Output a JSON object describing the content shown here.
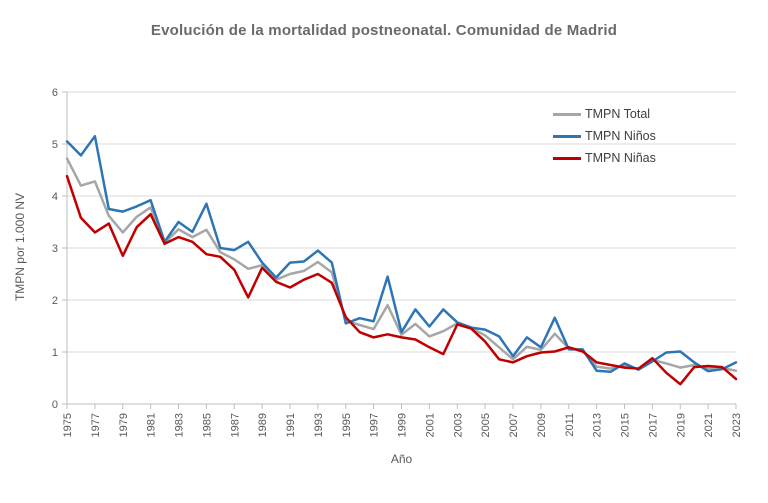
{
  "title": "Evolución de la mortalidad postneonatal. Comunidad de Madrid",
  "axes": {
    "x_label": "Año",
    "y_label": "TMPN por 1.000 NV"
  },
  "chart_data": {
    "type": "line",
    "title": "Evolución de la mortalidad postneonatal. Comunidad de Madrid",
    "xlabel": "Año",
    "ylabel": "TMPN por 1.000 NV",
    "ylim": [
      0,
      6
    ],
    "y_ticks": [
      0,
      1,
      2,
      3,
      4,
      5,
      6
    ],
    "x_tick_label_step": 2,
    "grid": true,
    "legend_position": "top-right-inside",
    "x": [
      1975,
      1976,
      1977,
      1978,
      1979,
      1980,
      1981,
      1982,
      1983,
      1984,
      1985,
      1986,
      1987,
      1988,
      1989,
      1990,
      1991,
      1992,
      1993,
      1994,
      1995,
      1996,
      1997,
      1998,
      1999,
      2000,
      2001,
      2002,
      2003,
      2004,
      2005,
      2006,
      2007,
      2008,
      2009,
      2010,
      2011,
      2012,
      2013,
      2014,
      2015,
      2016,
      2017,
      2018,
      2019,
      2020,
      2021,
      2022,
      2023
    ],
    "series": [
      {
        "name": "TMPN Total",
        "color": "#A6A6A6",
        "values": [
          4.72,
          4.2,
          4.28,
          3.62,
          3.3,
          3.6,
          3.78,
          3.1,
          3.36,
          3.21,
          3.35,
          2.92,
          2.78,
          2.6,
          2.67,
          2.39,
          2.5,
          2.56,
          2.73,
          2.53,
          1.6,
          1.52,
          1.44,
          1.9,
          1.33,
          1.54,
          1.3,
          1.4,
          1.55,
          1.46,
          1.32,
          1.09,
          0.86,
          1.1,
          1.04,
          1.35,
          1.07,
          1.03,
          0.72,
          0.68,
          0.74,
          0.67,
          0.85,
          0.78,
          0.7,
          0.75,
          0.68,
          0.69,
          0.64
        ]
      },
      {
        "name": "TMPN Niños",
        "color": "#2E75B6",
        "values": [
          5.05,
          4.78,
          5.15,
          3.75,
          3.7,
          3.8,
          3.92,
          3.12,
          3.5,
          3.31,
          3.85,
          3.0,
          2.96,
          3.12,
          2.72,
          2.43,
          2.72,
          2.74,
          2.95,
          2.72,
          1.55,
          1.65,
          1.59,
          2.45,
          1.38,
          1.82,
          1.49,
          1.82,
          1.57,
          1.47,
          1.43,
          1.3,
          0.92,
          1.28,
          1.09,
          1.66,
          1.05,
          1.05,
          0.64,
          0.62,
          0.78,
          0.66,
          0.82,
          0.99,
          1.01,
          0.8,
          0.63,
          0.67,
          0.8
        ]
      },
      {
        "name": "TMPN Niñas",
        "color": "#C00000",
        "values": [
          4.38,
          3.58,
          3.3,
          3.47,
          2.85,
          3.4,
          3.65,
          3.08,
          3.21,
          3.12,
          2.88,
          2.83,
          2.58,
          2.05,
          2.62,
          2.35,
          2.24,
          2.39,
          2.5,
          2.33,
          1.67,
          1.38,
          1.28,
          1.34,
          1.28,
          1.24,
          1.09,
          0.96,
          1.53,
          1.45,
          1.2,
          0.86,
          0.8,
          0.92,
          0.99,
          1.01,
          1.09,
          1.01,
          0.8,
          0.75,
          0.7,
          0.68,
          0.88,
          0.6,
          0.38,
          0.71,
          0.73,
          0.71,
          0.48
        ]
      }
    ]
  },
  "style_colors": {
    "gridline": "#D9D9D9",
    "axis_line": "#BFBFBF",
    "tick_text": "#595959",
    "title_text": "#6A6A6A"
  }
}
